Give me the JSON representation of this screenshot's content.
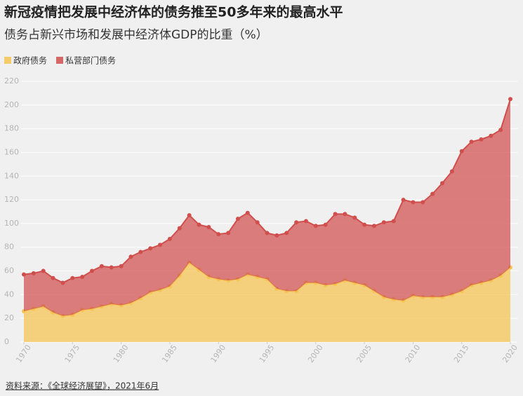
{
  "chart_data": {
    "type": "area",
    "title": "新冠疫情把发展中经济体的债务推至50多年来的最高水平",
    "subtitle": "债务占新兴市场和发展中经济体GDP的比重（%）",
    "source": "资料来源：《全球经济展望》，2021年6月",
    "stacked": true,
    "grid": true,
    "legend": "top-left",
    "x": [
      1970,
      1971,
      1972,
      1973,
      1974,
      1975,
      1976,
      1977,
      1978,
      1979,
      1980,
      1981,
      1982,
      1983,
      1984,
      1985,
      1986,
      1987,
      1988,
      1989,
      1990,
      1991,
      1992,
      1993,
      1994,
      1995,
      1996,
      1997,
      1998,
      1999,
      2000,
      2001,
      2002,
      2003,
      2004,
      2005,
      2006,
      2007,
      2008,
      2009,
      2010,
      2011,
      2012,
      2013,
      2014,
      2015,
      2016,
      2017,
      2018,
      2019,
      2020
    ],
    "xlim": [
      1970,
      2020
    ],
    "xticks": [
      1970,
      1975,
      1980,
      1985,
      1990,
      1995,
      2000,
      2005,
      2010,
      2015,
      2020
    ],
    "ylim": [
      0,
      220
    ],
    "yticks": [
      0,
      20,
      40,
      60,
      80,
      100,
      120,
      140,
      160,
      180,
      200,
      220
    ],
    "series": [
      {
        "name": "政府债务",
        "color": "#f5c451",
        "values": [
          26,
          28,
          30,
          25,
          22,
          23,
          27,
          28,
          30,
          32,
          31,
          33,
          37,
          42,
          44,
          47,
          56,
          67,
          61,
          55,
          53,
          52,
          53,
          57,
          55,
          53,
          45,
          43,
          43,
          50,
          50,
          48,
          49,
          52,
          50,
          48,
          43,
          38,
          36,
          35,
          39,
          38,
          38,
          38,
          40,
          43,
          48,
          50,
          52,
          56,
          63
        ]
      },
      {
        "name": "私营部门债务",
        "color": "#d04f4d",
        "values": [
          31,
          30,
          30,
          29,
          28,
          31,
          28,
          32,
          34,
          31,
          33,
          39,
          39,
          37,
          38,
          40,
          40,
          40,
          38,
          42,
          38,
          40,
          51,
          52,
          46,
          39,
          45,
          49,
          58,
          52,
          48,
          51,
          59,
          56,
          55,
          51,
          55,
          63,
          66,
          85,
          79,
          80,
          87,
          96,
          104,
          118,
          121,
          121,
          122,
          123,
          142
        ]
      }
    ]
  }
}
